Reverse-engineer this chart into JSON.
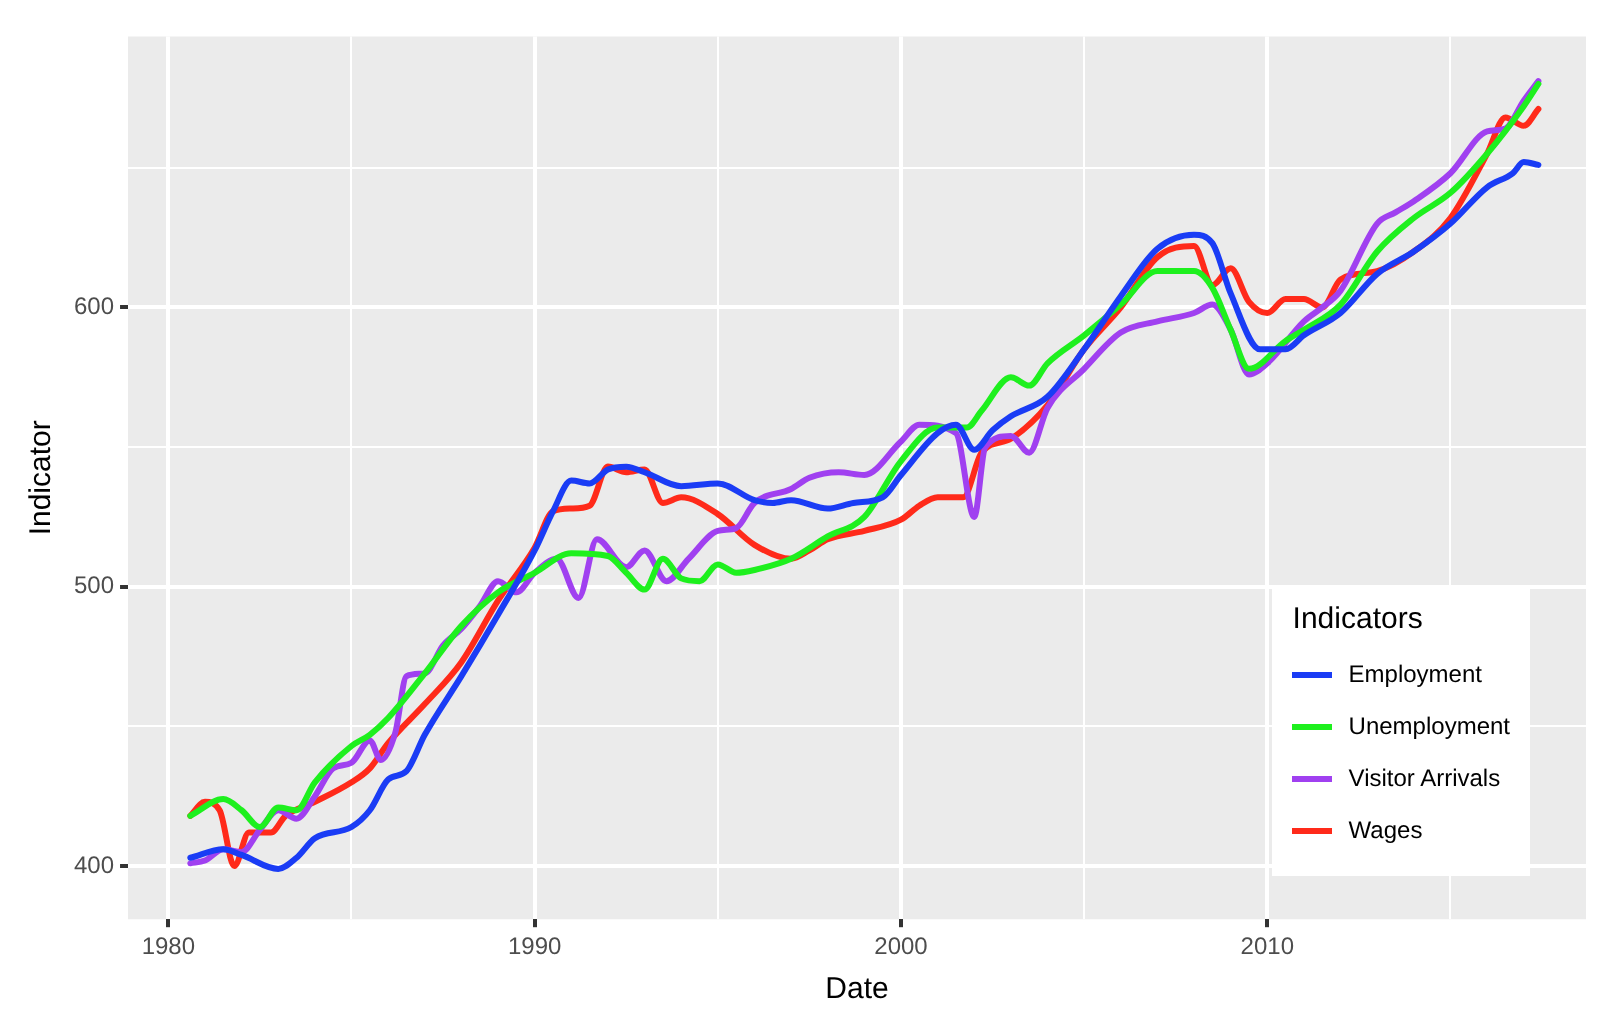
{
  "chart_data": {
    "type": "line",
    "xlabel": "Date",
    "ylabel": "Indicator",
    "legend_title": "Indicators",
    "legend": "bottom right",
    "grid": true,
    "xlim": [
      1978.9,
      2018.7
    ],
    "xticks": [
      1980,
      {
        "value": 1985,
        "label": null
      },
      1990,
      {
        "value": 1995,
        "label": null
      },
      2000,
      {
        "value": 2005,
        "label": null
      },
      2010,
      {
        "value": 2015,
        "label": null
      }
    ],
    "ylim": [
      381,
      697
    ],
    "yticks": [
      400,
      {
        "value": 450,
        "label": null
      },
      500,
      {
        "value": 550,
        "label": null
      },
      600,
      {
        "value": 650,
        "label": null
      }
    ],
    "series": [
      {
        "name": "Employment",
        "color": "#1a3cf5",
        "x": [
          1980.6,
          1981.5,
          1982,
          1983,
          1983.5,
          1984,
          1985,
          1985.5,
          1986,
          1986.5,
          1987,
          1988,
          1989,
          1990,
          1990.5,
          1991,
          1991.5,
          1992,
          1992.5,
          1993,
          1994,
          1995,
          1996,
          1996.5,
          1997,
          1998,
          1998.7,
          1999.5,
          2000,
          2001,
          2001.5,
          2002,
          2002.5,
          2003,
          2004,
          2005,
          2006,
          2007,
          2008,
          2008.5,
          2009,
          2009.8,
          2010.5,
          2011,
          2012,
          2013,
          2014,
          2015,
          2016,
          2016.7,
          2017,
          2017.4
        ],
        "values": [
          403,
          406,
          404,
          399,
          403,
          410,
          414,
          420,
          431,
          434,
          447,
          468,
          490,
          513,
          527,
          538,
          537,
          542,
          543,
          541,
          536,
          537,
          531,
          530,
          531,
          528,
          530,
          532,
          540,
          555,
          558,
          549,
          556,
          561,
          568,
          585,
          604,
          621,
          626,
          623,
          605,
          585,
          585,
          590,
          598,
          612,
          620,
          630,
          643,
          648,
          652,
          651
        ]
      },
      {
        "name": "Unemployment",
        "color": "#1ef01e",
        "x": [
          1980.6,
          1981.5,
          1982,
          1982.5,
          1983,
          1983.5,
          1984,
          1985,
          1985.5,
          1986,
          1987,
          1988,
          1989,
          1990,
          1991,
          1992,
          1992.5,
          1993,
          1993.5,
          1994,
          1994.5,
          1995,
          1995.5,
          1996,
          1997,
          1998,
          1999,
          2000,
          2001,
          2001.8,
          2002.2,
          2003,
          2003.5,
          2004,
          2005,
          2006,
          2007,
          2008,
          2008.5,
          2009,
          2009.5,
          2010.5,
          2011,
          2012,
          2013,
          2014,
          2015,
          2016,
          2017,
          2017.4
        ],
        "values": [
          418,
          424,
          420,
          414,
          421,
          420,
          430,
          443,
          447,
          453,
          469,
          486,
          498,
          505,
          512,
          511,
          505,
          499,
          510,
          503,
          502,
          508,
          505,
          506,
          510,
          518,
          525,
          545,
          557,
          557,
          563,
          575,
          572,
          580,
          590,
          601,
          613,
          613,
          607,
          592,
          578,
          588,
          592,
          601,
          620,
          632,
          641,
          655,
          672,
          680
        ]
      },
      {
        "name": "Visitor Arrivals",
        "color": "#a040f0",
        "x": [
          1980.6,
          1981,
          1981.5,
          1982,
          1982.5,
          1983,
          1983.5,
          1984,
          1984.5,
          1985,
          1985.5,
          1985.8,
          1986.2,
          1986.5,
          1987,
          1987.5,
          1988,
          1988.5,
          1989,
          1989.5,
          1990,
          1990.6,
          1991.2,
          1991.7,
          1992.5,
          1993,
          1993.6,
          1994.2,
          1995,
          1995.5,
          1996,
          1997,
          1997.5,
          1998.3,
          1999,
          2000,
          2000.5,
          2001.5,
          2002,
          2002.3,
          2003,
          2003.5,
          2004,
          2005,
          2006,
          2007,
          2008,
          2008.5,
          2009,
          2009.5,
          2010,
          2011,
          2011.5,
          2012,
          2013,
          2013.5,
          2014,
          2015,
          2016,
          2016.5,
          2017,
          2017.4
        ],
        "values": [
          401,
          402,
          406,
          405,
          413,
          420,
          417,
          425,
          435,
          437,
          445,
          438,
          448,
          468,
          469,
          479,
          485,
          493,
          502,
          498,
          505,
          510,
          496,
          517,
          507,
          513,
          502,
          510,
          520,
          521,
          530,
          535,
          539,
          541,
          540,
          552,
          558,
          555,
          525,
          550,
          554,
          548,
          564,
          578,
          591,
          595,
          598,
          601,
          592,
          576,
          580,
          595,
          600,
          606,
          630,
          634,
          638,
          648,
          663,
          664,
          674,
          681
        ]
      },
      {
        "name": "Wages",
        "color": "#ff2a1a",
        "x": [
          1980.6,
          1981,
          1981.4,
          1981.8,
          1982.2,
          1982.8,
          1983.2,
          1984,
          1985,
          1985.5,
          1986,
          1987,
          1988,
          1989,
          1990,
          1990.5,
          1991,
          1991.5,
          1992,
          1992.5,
          1993,
          1993.5,
          1994,
          1995,
          1996,
          1997,
          1997.5,
          1998,
          1999,
          2000,
          2000.5,
          2001,
          2001.7,
          2002.2,
          2003,
          2004,
          2005,
          2006,
          2007,
          2008,
          2008.5,
          2009,
          2009.5,
          2010,
          2010.5,
          2011,
          2011.5,
          2012,
          2013,
          2014,
          2015,
          2016,
          2016.5,
          2017,
          2017.4
        ],
        "values": [
          418,
          423,
          420,
          400,
          412,
          412,
          418,
          423,
          430,
          435,
          444,
          458,
          473,
          495,
          514,
          527,
          528,
          529,
          543,
          541,
          542,
          530,
          532,
          526,
          515,
          510,
          513,
          517,
          520,
          524,
          529,
          532,
          532,
          548,
          553,
          565,
          585,
          600,
          618,
          622,
          608,
          614,
          602,
          598,
          603,
          603,
          600,
          610,
          613,
          620,
          632,
          655,
          668,
          665,
          671
        ]
      }
    ]
  }
}
